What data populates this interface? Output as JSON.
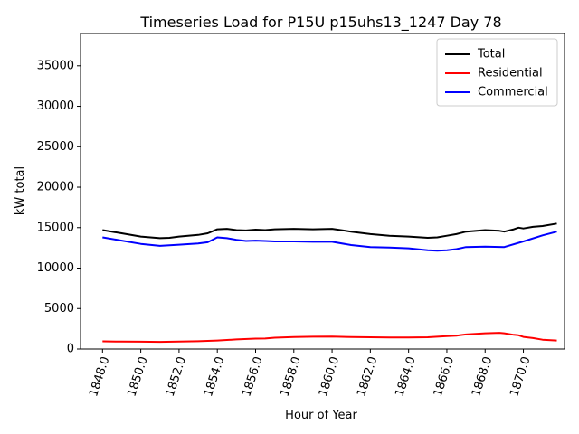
{
  "chart_data": {
    "type": "line",
    "title": "Timeseries Load for P15U p15uhs13_1247  Day 78",
    "xlabel": "Hour of Year",
    "ylabel": "kW total",
    "xlim": [
      1846.85,
      1872.15
    ],
    "ylim": [
      0,
      39000
    ],
    "grid": false,
    "legend_position": "upper right",
    "x_ticks": [
      1848,
      1850,
      1852,
      1854,
      1856,
      1858,
      1860,
      1862,
      1864,
      1866,
      1868,
      1870
    ],
    "x_tick_labels": [
      "1848.0",
      "1850.0",
      "1852.0",
      "1854.0",
      "1856.0",
      "1858.0",
      "1860.0",
      "1862.0",
      "1864.0",
      "1866.0",
      "1868.0",
      "1870.0"
    ],
    "y_ticks": [
      0,
      5000,
      10000,
      15000,
      20000,
      25000,
      30000,
      35000
    ],
    "y_tick_labels": [
      "0",
      "5000",
      "10000",
      "15000",
      "20000",
      "25000",
      "30000",
      "35000"
    ],
    "series": [
      {
        "name": "Total",
        "color": "#000000",
        "x": [
          1848,
          1849,
          1850,
          1851,
          1851.5,
          1852,
          1853,
          1853.5,
          1854,
          1854.5,
          1855,
          1855.5,
          1856,
          1856.5,
          1857,
          1858,
          1859,
          1860,
          1861,
          1862,
          1863,
          1864,
          1865,
          1865.5,
          1866,
          1866.5,
          1867,
          1868,
          1868.75,
          1869,
          1869.5,
          1869.75,
          1870,
          1870.5,
          1871,
          1871.75
        ],
        "values": [
          14700,
          14300,
          13900,
          13700,
          13750,
          13900,
          14100,
          14300,
          14800,
          14850,
          14700,
          14650,
          14750,
          14700,
          14800,
          14850,
          14800,
          14850,
          14500,
          14200,
          14000,
          13900,
          13750,
          13800,
          14000,
          14200,
          14500,
          14700,
          14600,
          14500,
          14800,
          15000,
          14900,
          15100,
          15200,
          15500
        ]
      },
      {
        "name": "Residential",
        "color": "#ff0000",
        "x": [
          1848,
          1849,
          1850,
          1851,
          1852,
          1853,
          1854,
          1855,
          1856,
          1856.5,
          1857,
          1858,
          1859,
          1860,
          1861,
          1862,
          1863,
          1864,
          1865,
          1866,
          1866.5,
          1867,
          1868,
          1868.75,
          1869,
          1869.5,
          1869.75,
          1870,
          1870.5,
          1871,
          1871.75
        ],
        "values": [
          950,
          920,
          900,
          880,
          920,
          960,
          1050,
          1180,
          1280,
          1300,
          1400,
          1480,
          1520,
          1530,
          1480,
          1450,
          1430,
          1420,
          1450,
          1600,
          1650,
          1800,
          1950,
          2000,
          1950,
          1750,
          1700,
          1500,
          1350,
          1150,
          1050
        ]
      },
      {
        "name": "Commercial",
        "color": "#0000ff",
        "x": [
          1848,
          1849,
          1850,
          1851,
          1852,
          1853,
          1853.5,
          1854,
          1854.5,
          1855,
          1855.5,
          1856,
          1856.5,
          1857,
          1858,
          1859,
          1860,
          1861,
          1862,
          1863,
          1864,
          1865,
          1865.5,
          1866,
          1866.5,
          1867,
          1868,
          1869,
          1870,
          1871,
          1871.75
        ],
        "values": [
          13800,
          13400,
          13000,
          12750,
          12900,
          13050,
          13200,
          13800,
          13700,
          13500,
          13350,
          13400,
          13350,
          13300,
          13300,
          13250,
          13250,
          12850,
          12600,
          12550,
          12450,
          12200,
          12150,
          12200,
          12350,
          12600,
          12650,
          12600,
          13300,
          14050,
          14500
        ]
      }
    ]
  }
}
